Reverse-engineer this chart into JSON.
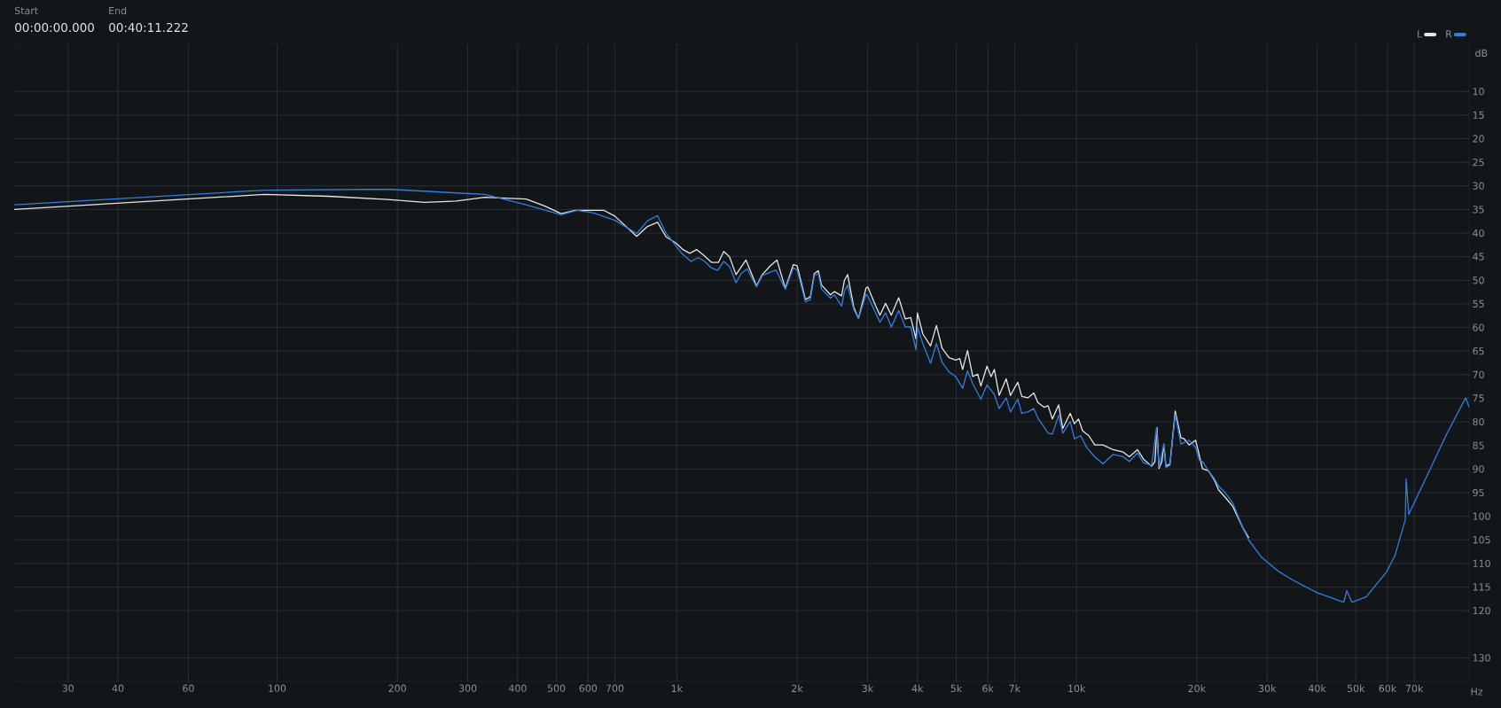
{
  "chart_data": {
    "type": "line",
    "xlabel": "Hz",
    "ylabel": "dB",
    "annotations": [
      "Start",
      "00:00:00.000",
      "End",
      "00:40:11.222"
    ],
    "log": "x",
    "grid": true,
    "legend": "top right",
    "xlim": [
      22,
      96000
    ],
    "ylim": [
      135,
      0
    ],
    "xticks": [
      30,
      40,
      60,
      100,
      200,
      300,
      400,
      500,
      600,
      700,
      {
        "value": 1000,
        "label": "1k"
      },
      {
        "value": 2000,
        "label": "2k"
      },
      {
        "value": 3000,
        "label": "3k"
      },
      {
        "value": 4000,
        "label": "4k"
      },
      {
        "value": 5000,
        "label": "5k"
      },
      {
        "value": 6000,
        "label": "6k"
      },
      {
        "value": 7000,
        "label": "7k"
      },
      {
        "value": 10000,
        "label": "10k"
      },
      {
        "value": 20000,
        "label": "20k"
      },
      {
        "value": 30000,
        "label": "30k"
      },
      {
        "value": 40000,
        "label": "40k"
      },
      {
        "value": 50000,
        "label": "50k"
      },
      {
        "value": 60000,
        "label": "60k"
      },
      {
        "value": 70000,
        "label": "70k"
      }
    ],
    "yticks": [
      10,
      15,
      20,
      25,
      30,
      35,
      40,
      45,
      50,
      55,
      60,
      65,
      70,
      75,
      80,
      85,
      90,
      95,
      100,
      105,
      110,
      115,
      120,
      130
    ],
    "series": [
      {
        "name": "L",
        "color": "#e6e6e6",
        "x": [
          22,
          93,
          134.5,
          189,
          234,
          281,
          331,
          420,
          468,
          514,
          557,
          658,
          700,
          794,
          845,
          895,
          940,
          995,
          1036,
          1078,
          1122,
          1171,
          1221,
          1272,
          1311,
          1355,
          1407,
          1490,
          1583,
          1637,
          1716,
          1781,
          1869,
          1957,
          2000,
          2099,
          2159,
          2208,
          2261,
          2302,
          2424,
          2480,
          2584,
          2627,
          2676,
          2772,
          2849,
          2976,
          3005,
          3144,
          3224,
          3330,
          3442,
          3591,
          3731,
          3849,
          3966,
          4000,
          4127,
          4315,
          4463,
          4611,
          4798,
          4988,
          5105,
          5190,
          5338,
          5502,
          5660,
          5766,
          5971,
          6115,
          6230,
          6405,
          6671,
          6837,
          7131,
          7299,
          7556,
          7824,
          8007,
          8294,
          8495,
          8703,
          9022,
          9241,
          9644,
          9885,
          10117,
          10358,
          10727,
          11111,
          11647,
          12348,
          13092,
          13558,
          14209,
          14716,
          15422,
          15714,
          15898,
          16087,
          16353,
          16547,
          16743,
          17137,
          17663,
          18253,
          18596,
          19131,
          19862,
          20327,
          20664,
          21393,
          22149,
          22663,
          23503,
          24604,
          26057,
          26990
        ],
        "values": [
          35.0,
          31.8,
          32.2,
          32.9,
          33.5,
          33.2,
          32.4,
          32.8,
          34.3,
          35.9,
          35.2,
          35.2,
          36.4,
          40.7,
          38.6,
          37.7,
          40.8,
          42.1,
          43.5,
          44.3,
          43.5,
          44.8,
          46.2,
          46.2,
          43.9,
          45.0,
          48.8,
          45.7,
          51.2,
          48.8,
          46.9,
          45.7,
          51.7,
          46.7,
          46.9,
          54.1,
          53.5,
          48.6,
          48.0,
          51.0,
          53.1,
          52.4,
          53.3,
          50.0,
          48.8,
          55.7,
          58.1,
          51.6,
          51.4,
          55.4,
          57.4,
          54.9,
          57.4,
          53.7,
          58.2,
          57.9,
          62.4,
          56.9,
          61.4,
          63.9,
          59.6,
          64.4,
          66.4,
          66.9,
          66.6,
          68.9,
          64.9,
          70.4,
          69.9,
          72.4,
          68.2,
          70.4,
          68.9,
          74.4,
          70.9,
          74.4,
          71.6,
          74.6,
          74.9,
          73.9,
          75.9,
          76.9,
          76.6,
          79.4,
          76.4,
          81.4,
          78.2,
          80.4,
          79.4,
          81.9,
          82.9,
          84.9,
          84.9,
          85.9,
          86.4,
          87.4,
          85.9,
          87.9,
          89.4,
          88.4,
          81.2,
          89.9,
          88.4,
          84.9,
          89.4,
          88.9,
          77.7,
          83.4,
          83.6,
          84.9,
          83.9,
          87.4,
          89.9,
          90.4,
          92.4,
          94.4,
          95.9,
          97.9,
          102.4,
          104.6
        ]
      },
      {
        "name": "R",
        "color": "#2f7fe0",
        "x": [
          22,
          93,
          189,
          281,
          331,
          420,
          514,
          563,
          617,
          700,
          794,
          845,
          895,
          940,
          1029,
          1086,
          1131,
          1171,
          1221,
          1266,
          1311,
          1355,
          1407,
          1448,
          1500,
          1583,
          1637,
          1770,
          1869,
          1957,
          2000,
          2099,
          2159,
          2208,
          2261,
          2302,
          2424,
          2480,
          2584,
          2627,
          2676,
          2772,
          2849,
          2976,
          3005,
          3224,
          3330,
          3442,
          3591,
          3731,
          3849,
          3966,
          4000,
          4127,
          4315,
          4463,
          4611,
          4798,
          4988,
          5190,
          5338,
          5502,
          5766,
          5971,
          6230,
          6405,
          6671,
          6837,
          7131,
          7299,
          7556,
          7824,
          8007,
          8495,
          8703,
          9022,
          9241,
          9644,
          9885,
          10237,
          10603,
          11111,
          11647,
          12348,
          13092,
          13558,
          14209,
          14716,
          15422,
          15861,
          16087,
          16547,
          16743,
          17137,
          17663,
          18253,
          19131,
          19862,
          20327,
          20664,
          21393,
          22149,
          22663,
          23503,
          24604,
          26057,
          26990,
          28977,
          31796,
          34720,
          40000,
          46627,
          47460,
          48860,
          53046,
          59560,
          62587,
          66445,
          66802,
          67798,
          75362,
          84005,
          94113,
          96000
        ],
        "values": [
          34.0,
          30.9,
          30.7,
          31.5,
          31.8,
          34.0,
          36.1,
          35.2,
          35.7,
          37.3,
          40.1,
          37.4,
          36.3,
          40.0,
          44.3,
          46.0,
          45.2,
          45.9,
          47.4,
          47.9,
          46.0,
          47.1,
          50.5,
          48.6,
          47.6,
          51.4,
          49.0,
          47.8,
          51.9,
          47.4,
          47.8,
          54.6,
          54.1,
          49.0,
          48.6,
          51.9,
          53.8,
          53.1,
          55.5,
          52.4,
          51.0,
          56.2,
          58.1,
          53.0,
          53.3,
          58.9,
          56.9,
          59.9,
          56.4,
          59.9,
          59.9,
          64.7,
          59.9,
          63.4,
          67.6,
          63.4,
          67.4,
          69.4,
          70.4,
          72.9,
          69.2,
          71.9,
          75.2,
          72.2,
          74.2,
          77.2,
          74.9,
          77.9,
          75.2,
          78.2,
          77.9,
          77.2,
          79.2,
          82.4,
          82.6,
          78.6,
          82.4,
          79.9,
          83.6,
          82.9,
          85.4,
          87.4,
          88.9,
          86.9,
          87.4,
          88.4,
          86.6,
          88.7,
          89.2,
          81.2,
          89.6,
          84.6,
          89.7,
          89.2,
          78.4,
          84.7,
          83.9,
          85.4,
          88.2,
          88.4,
          90.4,
          92.1,
          93.6,
          94.9,
          97.2,
          102.4,
          105.1,
          108.6,
          111.5,
          113.5,
          116.2,
          118.2,
          115.8,
          118.2,
          117.1,
          111.9,
          108.4,
          100.8,
          92.1,
          99.6,
          91.4,
          82.9,
          74.9,
          76.9
        ]
      }
    ]
  }
}
